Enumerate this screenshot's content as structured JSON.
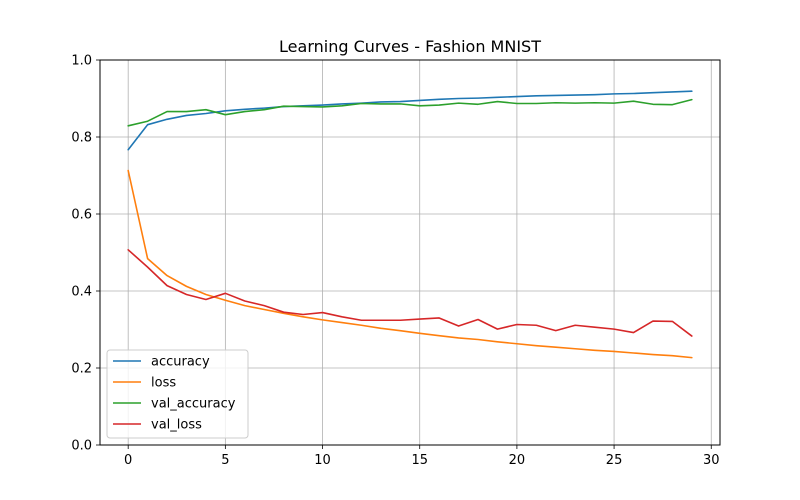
{
  "chart_data": {
    "type": "line",
    "title": "Learning Curves - Fashion MNIST",
    "xlabel": "",
    "ylabel": "",
    "xlim": [
      -1.45,
      30.45
    ],
    "ylim": [
      0,
      1.0
    ],
    "xticks": [
      0,
      5,
      10,
      15,
      20,
      25,
      30
    ],
    "xtick_labels": [
      "0",
      "5",
      "10",
      "15",
      "20",
      "25",
      "30"
    ],
    "yticks": [
      0.0,
      0.2,
      0.4,
      0.6,
      0.8,
      1.0
    ],
    "ytick_labels": [
      "0.0",
      "0.2",
      "0.4",
      "0.6",
      "0.8",
      "1.0"
    ],
    "grid": true,
    "legend_position": "lower-left",
    "x": [
      0,
      1,
      2,
      3,
      4,
      5,
      6,
      7,
      8,
      9,
      10,
      11,
      12,
      13,
      14,
      15,
      16,
      17,
      18,
      19,
      20,
      21,
      22,
      23,
      24,
      25,
      26,
      27,
      28,
      29
    ],
    "series": [
      {
        "name": "accuracy",
        "color": "#1f77b4",
        "values": [
          0.767,
          0.832,
          0.846,
          0.856,
          0.861,
          0.868,
          0.872,
          0.875,
          0.879,
          0.881,
          0.883,
          0.886,
          0.888,
          0.891,
          0.892,
          0.895,
          0.898,
          0.9,
          0.901,
          0.903,
          0.905,
          0.907,
          0.908,
          0.909,
          0.91,
          0.912,
          0.913,
          0.915,
          0.917,
          0.919
        ]
      },
      {
        "name": "loss",
        "color": "#ff7f0e",
        "values": [
          0.713,
          0.484,
          0.44,
          0.412,
          0.391,
          0.376,
          0.362,
          0.352,
          0.342,
          0.333,
          0.325,
          0.318,
          0.311,
          0.303,
          0.297,
          0.29,
          0.284,
          0.278,
          0.274,
          0.268,
          0.263,
          0.258,
          0.254,
          0.25,
          0.246,
          0.243,
          0.239,
          0.235,
          0.232,
          0.227
        ]
      },
      {
        "name": "val_accuracy",
        "color": "#2ca02c",
        "values": [
          0.829,
          0.841,
          0.866,
          0.866,
          0.871,
          0.858,
          0.866,
          0.871,
          0.88,
          0.879,
          0.878,
          0.881,
          0.887,
          0.886,
          0.886,
          0.881,
          0.883,
          0.888,
          0.885,
          0.892,
          0.887,
          0.887,
          0.889,
          0.888,
          0.889,
          0.888,
          0.893,
          0.885,
          0.884,
          0.897
        ]
      },
      {
        "name": "val_loss",
        "color": "#d62728",
        "values": [
          0.507,
          0.462,
          0.414,
          0.391,
          0.378,
          0.394,
          0.374,
          0.362,
          0.345,
          0.339,
          0.344,
          0.333,
          0.324,
          0.324,
          0.324,
          0.327,
          0.33,
          0.309,
          0.326,
          0.301,
          0.313,
          0.311,
          0.297,
          0.311,
          0.306,
          0.301,
          0.292,
          0.322,
          0.321,
          0.283
        ]
      }
    ]
  }
}
